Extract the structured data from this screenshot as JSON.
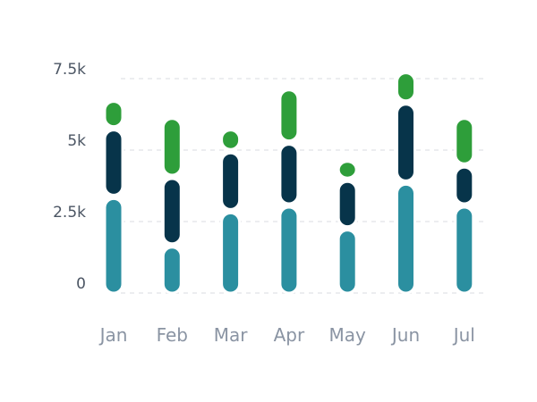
{
  "chart_data": {
    "type": "bar",
    "stacked": true,
    "categories": [
      "Jan",
      "Feb",
      "Mar",
      "Apr",
      "May",
      "Jun",
      "Jul"
    ],
    "series": [
      {
        "color": "#2b8fa0",
        "values": [
          3300,
          1600,
          2800,
          3000,
          2200,
          3800,
          3000
        ]
      },
      {
        "color": "#07344a",
        "values": [
          2400,
          2400,
          2100,
          2200,
          1700,
          2800,
          1400
        ]
      },
      {
        "color": "#2e9e3a",
        "values": [
          1000,
          2100,
          800,
          1900,
          700,
          1100,
          1700
        ]
      }
    ],
    "y_ticks": [
      "0",
      "2.5k",
      "5k",
      "7.5k"
    ],
    "y_tick_values": [
      0,
      2500,
      5000,
      7500
    ],
    "ylim": [
      0,
      7500
    ],
    "grid": true,
    "title": "",
    "xlabel": "",
    "ylabel": ""
  }
}
